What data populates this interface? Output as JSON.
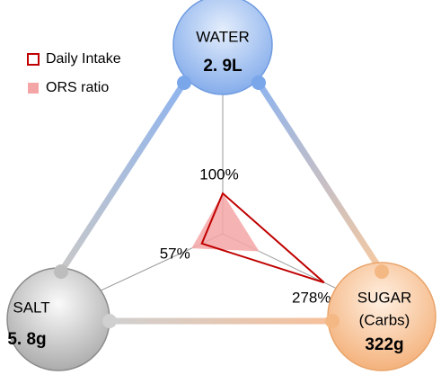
{
  "chart_data": {
    "type": "radar",
    "categories": [
      "WATER",
      "SALT",
      "SUGAR"
    ],
    "category_notes": [
      null,
      null,
      "(Carbs)"
    ],
    "amounts": [
      "2. 9L",
      "5. 8g",
      "322g"
    ],
    "series": [
      {
        "name": "Daily Intake",
        "color": "#c00000",
        "filled": false,
        "values": [
          100,
          57,
          278
        ],
        "value_labels": [
          "100%",
          "57%",
          "278%"
        ]
      },
      {
        "name": "ORS ratio",
        "color": "#f4a6a6",
        "filled": true,
        "values": [
          100,
          85,
          100
        ]
      }
    ],
    "legend": "top-left"
  }
}
